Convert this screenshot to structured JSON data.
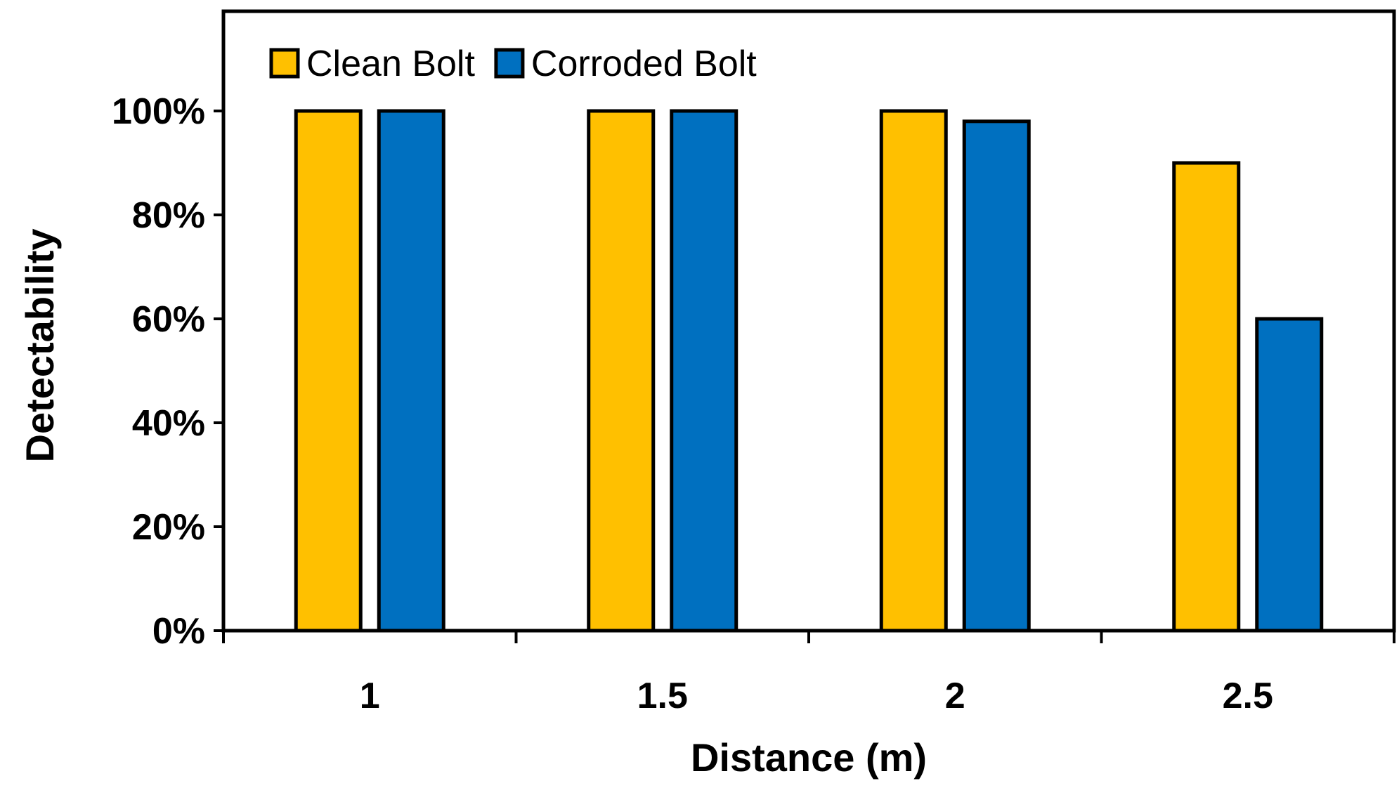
{
  "chart_data": {
    "type": "bar",
    "categories": [
      "1",
      "1.5",
      "2",
      "2.5"
    ],
    "series": [
      {
        "name": "Clean Bolt",
        "values": [
          100,
          100,
          100,
          90
        ],
        "color": "#FFC000"
      },
      {
        "name": "Corroded Bolt",
        "values": [
          100,
          100,
          98,
          60
        ],
        "color": "#0070C0"
      }
    ],
    "xlabel": "Distance (m)",
    "ylabel": "Detectability",
    "ylim": [
      0,
      100
    ],
    "yticks": [
      0,
      20,
      40,
      60,
      80,
      100
    ],
    "ytick_labels": [
      "0%",
      "20%",
      "40%",
      "60%",
      "80%",
      "100%"
    ],
    "grid": false,
    "legend": "top-left inside"
  }
}
